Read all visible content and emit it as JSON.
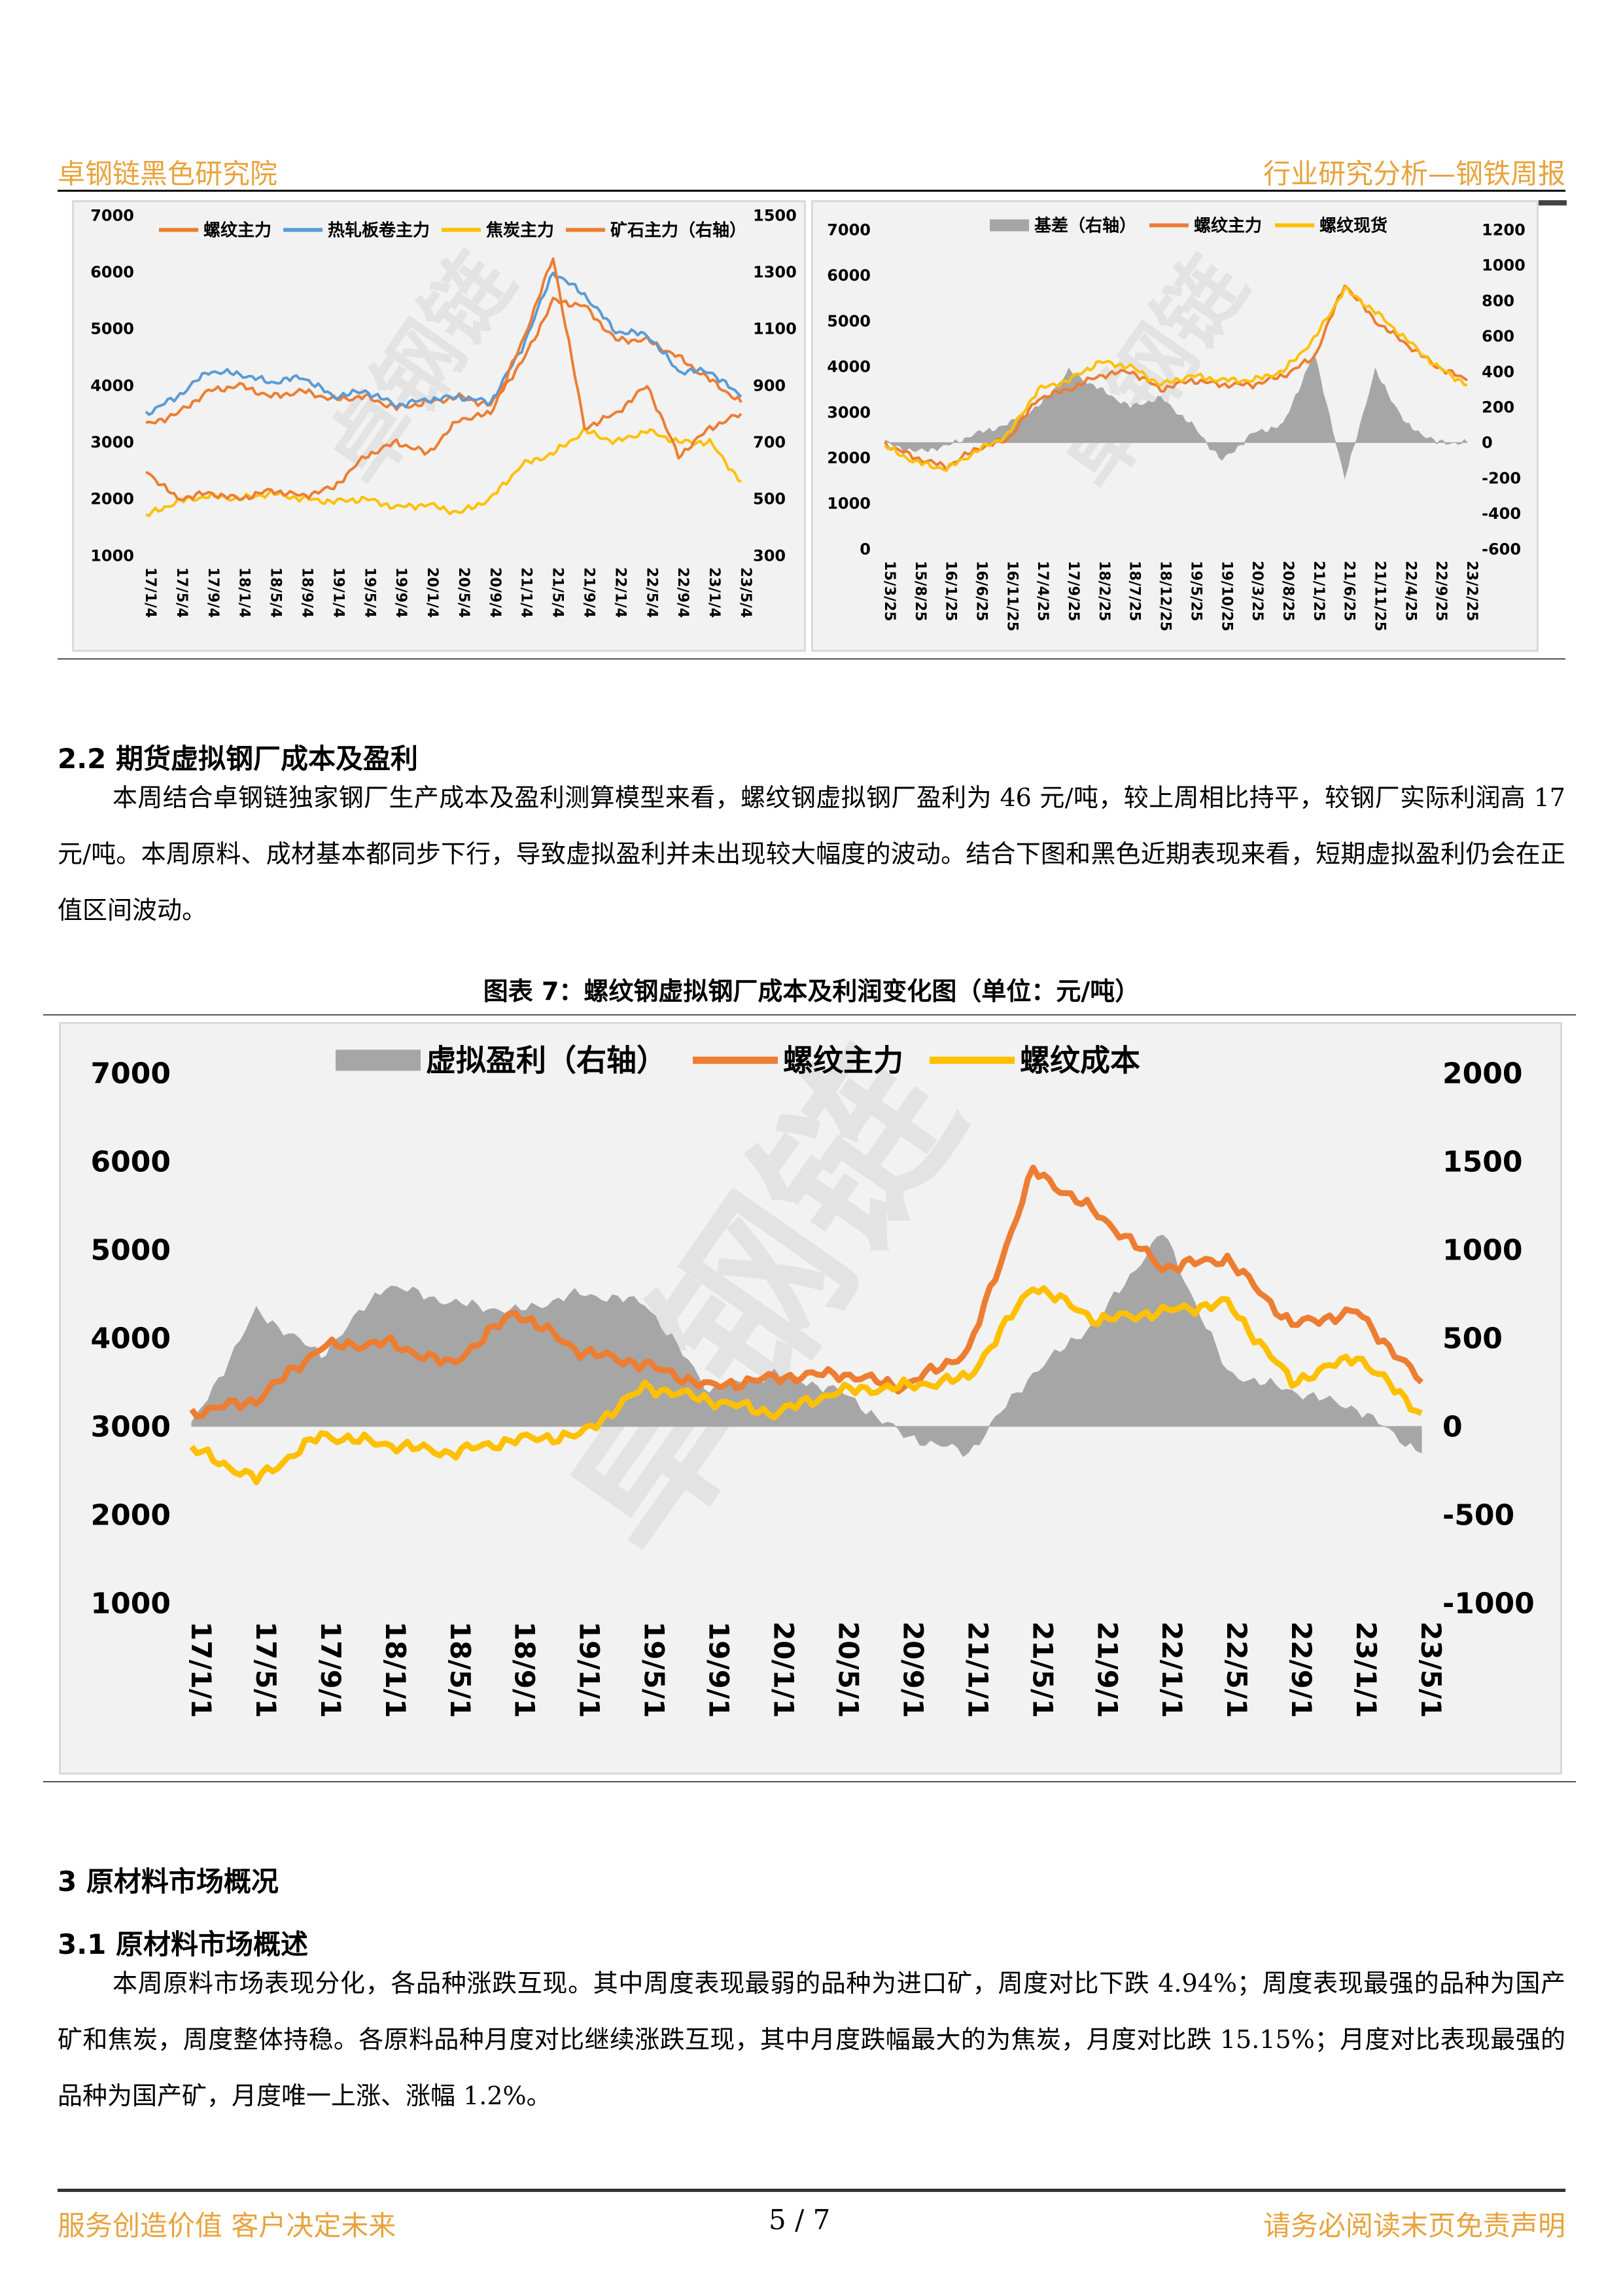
{
  "header": {
    "left": "卓钢链黑色研究院",
    "right": "行业研究分析—钢铁周报"
  },
  "colors": {
    "accent": "#e8a33d",
    "rebar": "#ed7d31",
    "hrc": "#5b9bd5",
    "coke": "#ffc000",
    "gray": "#a6a6a6"
  },
  "watermark": "卓钢链",
  "chart_data": [
    {
      "type": "line",
      "yticks_left": [
        "7000",
        "6000",
        "5000",
        "4000",
        "3000",
        "2000",
        "1000"
      ],
      "yticks_right": [
        "1500",
        "1300",
        "1100",
        "900",
        "700",
        "500",
        "300"
      ],
      "ylim": [
        1000,
        7000
      ],
      "ylim_right": [
        300,
        1500
      ],
      "x_ticks": [
        "17/1/4",
        "17/5/4",
        "17/9/4",
        "18/1/4",
        "18/5/4",
        "18/9/4",
        "19/1/4",
        "19/5/4",
        "19/9/4",
        "20/1/4",
        "20/5/4",
        "20/9/4",
        "21/1/4",
        "21/5/4",
        "21/9/4",
        "22/1/4",
        "22/5/4",
        "22/9/4",
        "23/1/4",
        "23/5/4"
      ],
      "legend_position": "top",
      "series": [
        {
          "name": "螺纹主力",
          "axis": "left",
          "values": [
            3300,
            3500,
            3900,
            4000,
            3800,
            3900,
            3750,
            3800,
            3600,
            3700,
            3800,
            3650,
            4400,
            5500,
            5400,
            4800,
            4800,
            4500,
            4100,
            3700
          ]
        },
        {
          "name": "热轧板卷主力",
          "axis": "left",
          "values": [
            3500,
            3800,
            4250,
            4200,
            4050,
            4150,
            3800,
            3900,
            3650,
            3750,
            3800,
            3700,
            4650,
            6000,
            5600,
            4950,
            4900,
            4250,
            4250,
            3800
          ]
        },
        {
          "name": "焦炭主力",
          "axis": "left",
          "values": [
            1700,
            1950,
            2050,
            2000,
            2100,
            2000,
            1950,
            2000,
            1850,
            1900,
            1750,
            2000,
            2600,
            2800,
            3200,
            3000,
            3200,
            3000,
            3000,
            2300
          ]
        },
        {
          "name": "矿石主力（右轴）",
          "axis": "right",
          "values": [
            600,
            500,
            520,
            500,
            530,
            510,
            540,
            650,
            700,
            660,
            780,
            800,
            1050,
            1350,
            750,
            800,
            900,
            650,
            750,
            800
          ]
        }
      ]
    },
    {
      "type": "line",
      "yticks_left": [
        "7000",
        "6000",
        "5000",
        "4000",
        "3000",
        "2000",
        "1000",
        "0"
      ],
      "yticks_right": [
        "1200",
        "1000",
        "800",
        "600",
        "400",
        "200",
        "0",
        "-200",
        "-400",
        "-600"
      ],
      "ylim": [
        0,
        7000
      ],
      "ylim_right": [
        -600,
        1200
      ],
      "x_ticks": [
        "15/3/25",
        "15/8/25",
        "16/1/25",
        "16/6/25",
        "16/11/25",
        "17/4/25",
        "17/9/25",
        "18/2/25",
        "18/7/25",
        "18/12/25",
        "19/5/25",
        "19/10/25",
        "20/3/25",
        "20/8/25",
        "21/1/25",
        "21/6/25",
        "21/11/25",
        "22/4/25",
        "22/9/25",
        "23/2/25"
      ],
      "legend_position": "top",
      "series": [
        {
          "name": "基差（右轴）",
          "axis": "right",
          "type": "bar",
          "values": [
            0,
            -50,
            -20,
            50,
            100,
            200,
            400,
            300,
            200,
            250,
            100,
            -100,
            50,
            100,
            500,
            -200,
            400,
            100,
            0,
            0
          ]
        },
        {
          "name": "螺纹主力",
          "axis": "left",
          "values": [
            2300,
            2000,
            1800,
            2200,
            2400,
            3300,
            3500,
            3800,
            3900,
            3500,
            3700,
            3600,
            3600,
            3800,
            4200,
            5800,
            5000,
            4500,
            4000,
            3700
          ]
        },
        {
          "name": "螺纹现货",
          "axis": "left",
          "values": [
            2250,
            1900,
            1750,
            2150,
            2500,
            3500,
            3700,
            4100,
            4000,
            3600,
            3800,
            3700,
            3700,
            3900,
            4600,
            5700,
            5200,
            4600,
            4000,
            3600
          ]
        }
      ]
    },
    {
      "type": "line",
      "yticks_left": [
        "7000",
        "6000",
        "5000",
        "4000",
        "3000",
        "2000",
        "1000"
      ],
      "yticks_right": [
        "2000",
        "1500",
        "1000",
        "500",
        "0",
        "-500",
        "-1000"
      ],
      "ylim": [
        1000,
        7000
      ],
      "ylim_right": [
        -1000,
        2000
      ],
      "x_ticks": [
        "17/1/1",
        "17/5/1",
        "17/9/1",
        "18/1/1",
        "18/5/1",
        "18/9/1",
        "19/1/1",
        "19/5/1",
        "19/9/1",
        "20/1/1",
        "20/5/1",
        "20/9/1",
        "21/1/1",
        "21/5/1",
        "21/9/1",
        "22/1/1",
        "22/5/1",
        "22/9/1",
        "23/1/1",
        "23/5/1"
      ],
      "legend_position": "top",
      "series": [
        {
          "name": "虚拟盈利（右轴）",
          "axis": "right",
          "type": "bar",
          "values": [
            0,
            650,
            400,
            800,
            700,
            650,
            750,
            700,
            200,
            300,
            200,
            -50,
            -150,
            300,
            600,
            1100,
            300,
            200,
            100,
            -150
          ]
        },
        {
          "name": "螺纹主力",
          "axis": "left",
          "values": [
            3150,
            3300,
            3900,
            3950,
            3700,
            4300,
            3850,
            3700,
            3450,
            3550,
            3600,
            3450,
            3850,
            5900,
            5400,
            4800,
            4900,
            4150,
            4300,
            3500
          ]
        },
        {
          "name": "螺纹成本",
          "axis": "left",
          "values": [
            2750,
            2400,
            2900,
            2800,
            2700,
            2850,
            2900,
            3450,
            3300,
            3150,
            3400,
            3450,
            3550,
            4600,
            4200,
            4300,
            4400,
            3500,
            3800,
            3150
          ]
        }
      ]
    }
  ],
  "section_2_2": {
    "title": "2.2  期货虚拟钢厂成本及盈利",
    "paragraph": "本周结合卓钢链独家钢厂生产成本及盈利测算模型来看，螺纹钢虚拟钢厂盈利为 46 元/吨，较上周相比持平，较钢厂实际利润高 17 元/吨。本周原料、成材基本都同步下行，导致虚拟盈利并未出现较大幅度的波动。结合下图和黑色近期表现来看，短期虚拟盈利仍会在正值区间波动。"
  },
  "figure7_caption": "图表 7：螺纹钢虚拟钢厂成本及利润变化图（单位：元/吨）",
  "section_3": {
    "title": "3  原材料市场概况"
  },
  "section_3_1": {
    "title": "3.1 原材料市场概述",
    "paragraph": "本周原料市场表现分化，各品种涨跌互现。其中周度表现最弱的品种为进口矿，周度对比下跌 4.94%；周度表现最强的品种为国产矿和焦炭，周度整体持稳。各原料品种月度对比继续涨跌互现，其中月度跌幅最大的为焦炭，月度对比跌 15.15%；月度对比表现最强的品种为国产矿，月度唯一上涨、涨幅 1.2%。"
  },
  "footer": {
    "left": "服务创造价值  客户决定未来",
    "page": "5  /  7",
    "right": "请务必阅读末页免责声明"
  }
}
